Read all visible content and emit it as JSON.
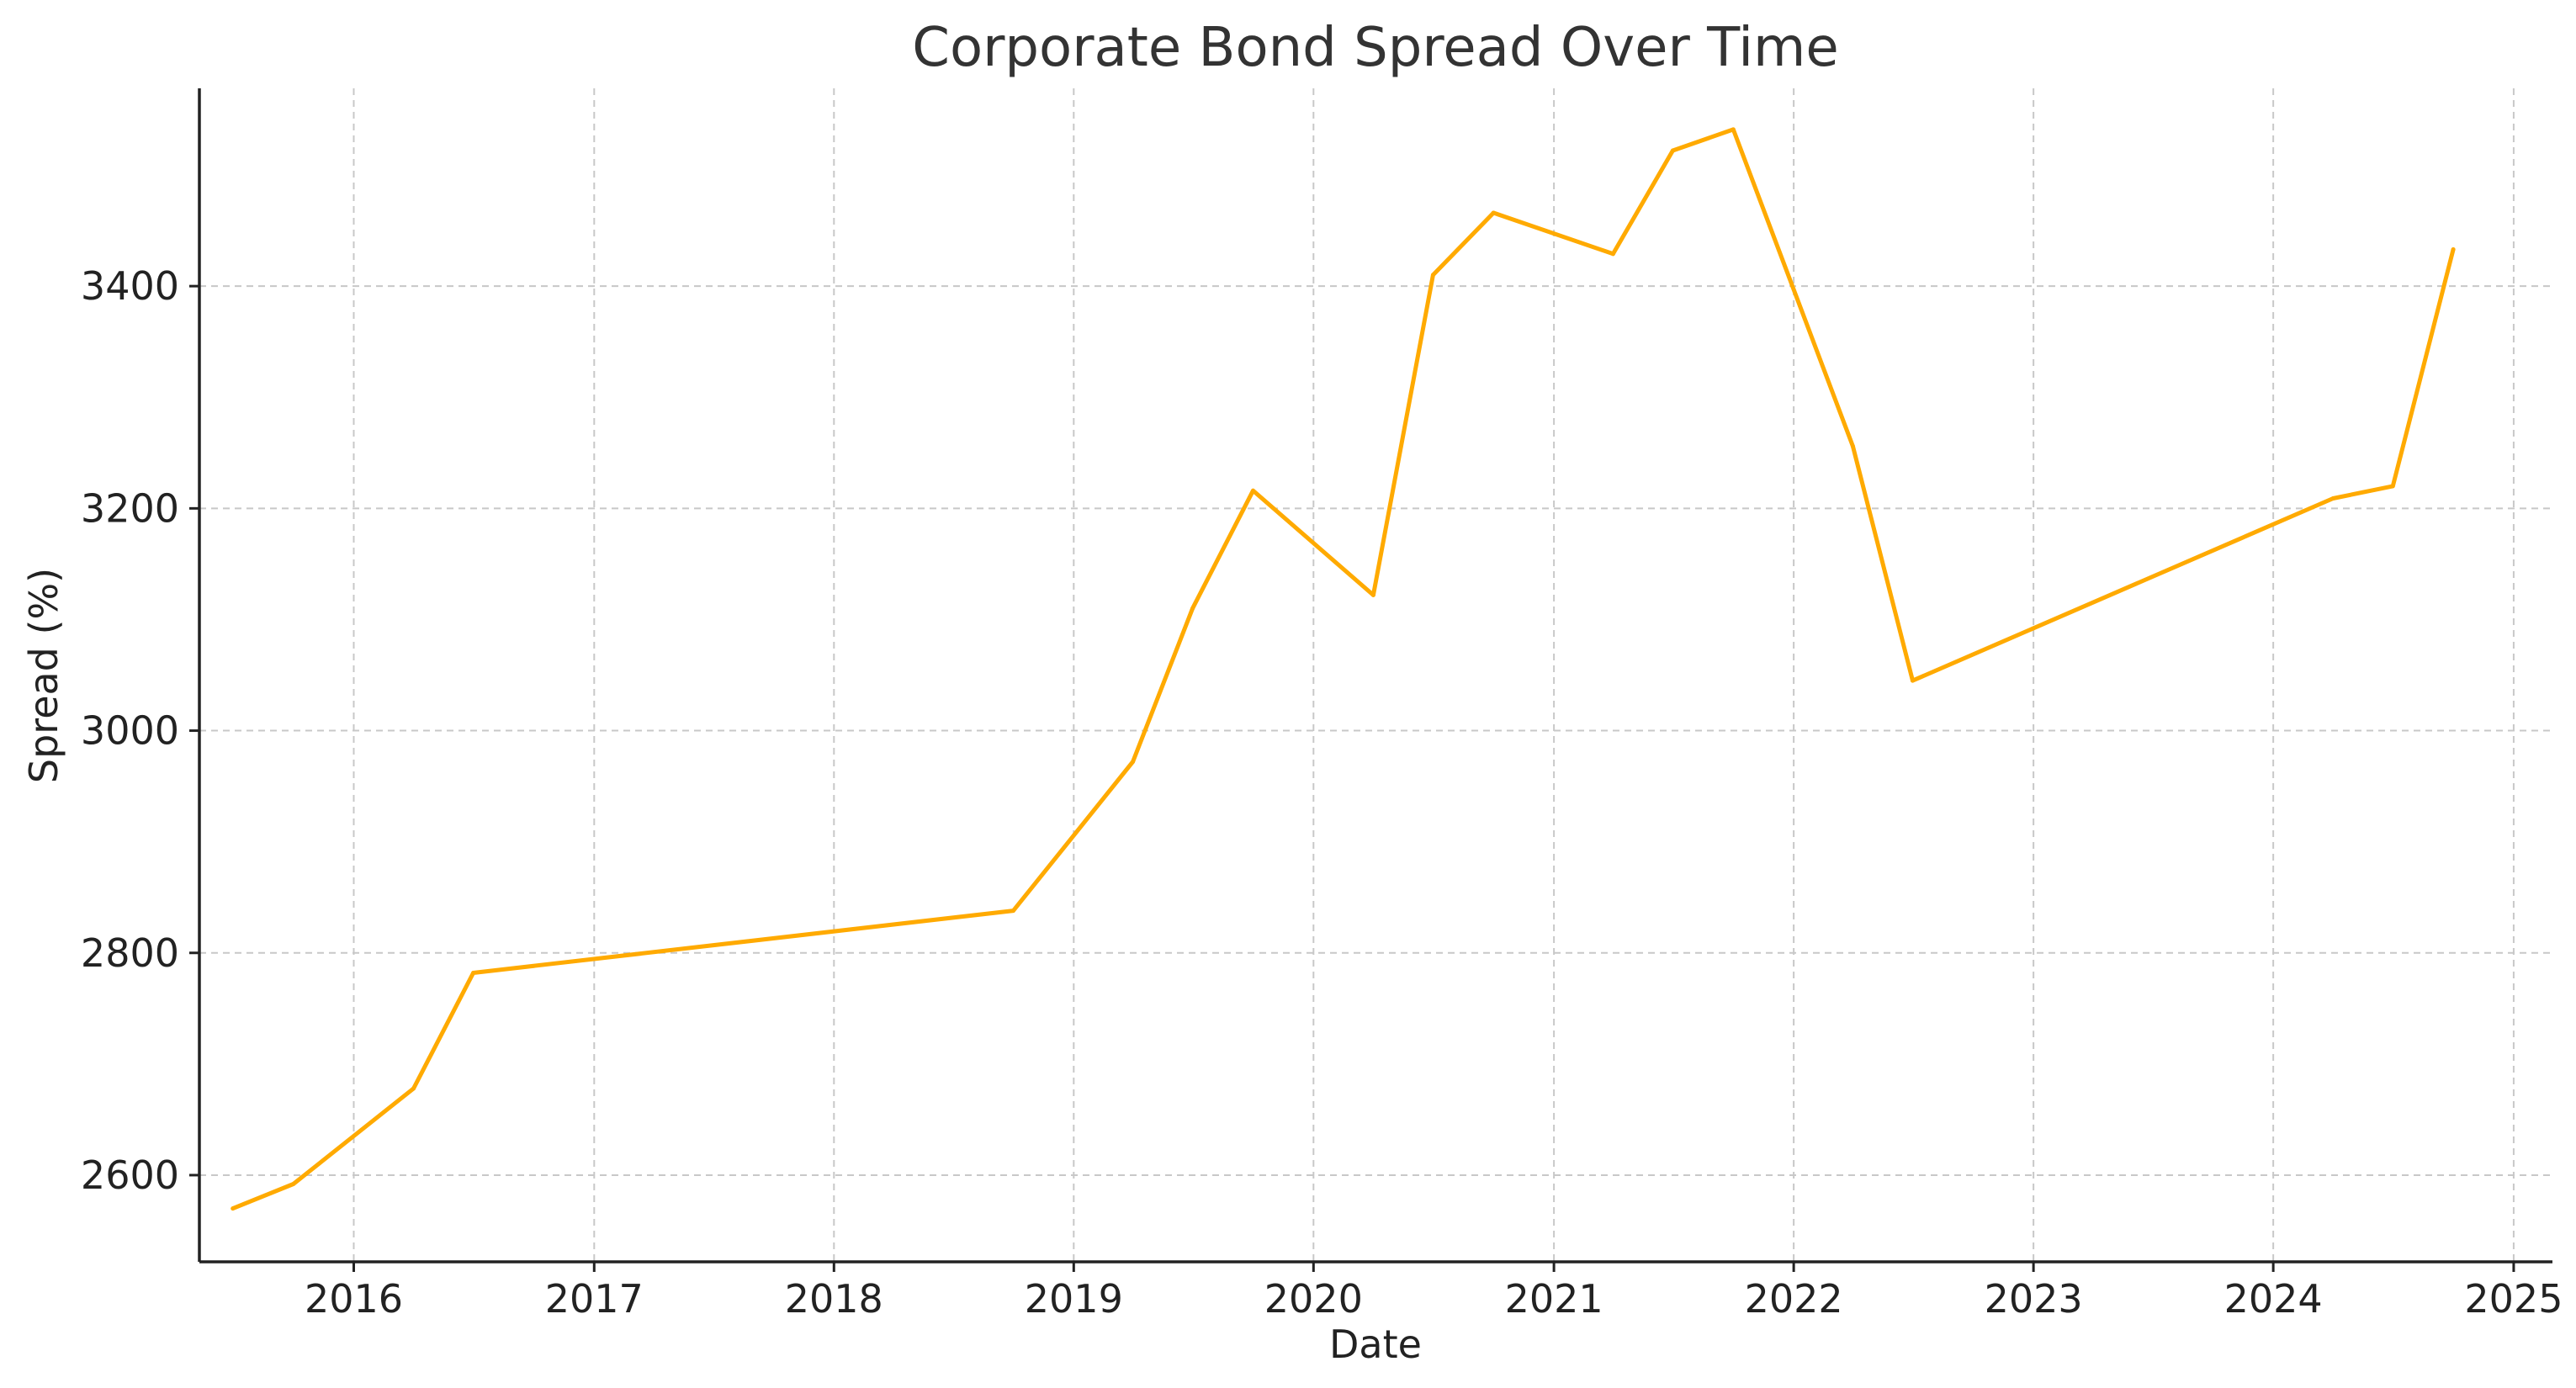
{
  "chart_data": {
    "type": "line",
    "title": "Corporate Bond Spread Over Time",
    "xlabel": "Date",
    "ylabel": "Spread (%)",
    "x_axis_type": "date",
    "x_ticks": [
      "2016",
      "2017",
      "2018",
      "2019",
      "2020",
      "2021",
      "2022",
      "2023",
      "2024",
      "2025"
    ],
    "y_ticks": [
      2600,
      2800,
      3000,
      3200,
      3400
    ],
    "xlim": [
      "2015-05-11",
      "2025-03-01"
    ],
    "ylim": [
      2522,
      3578
    ],
    "grid": true,
    "legend": "none",
    "series": [
      {
        "color": "#FFAA00",
        "points": [
          {
            "x": "2015-07-01",
            "y": 2570
          },
          {
            "x": "2015-10-01",
            "y": 2592
          },
          {
            "x": "2016-04-01",
            "y": 2678
          },
          {
            "x": "2016-07-01",
            "y": 2782
          },
          {
            "x": "2018-10-01",
            "y": 2838
          },
          {
            "x": "2019-04-01",
            "y": 2972
          },
          {
            "x": "2019-07-01",
            "y": 3110
          },
          {
            "x": "2019-10-01",
            "y": 3216
          },
          {
            "x": "2020-04-01",
            "y": 3122
          },
          {
            "x": "2020-07-01",
            "y": 3410
          },
          {
            "x": "2020-10-01",
            "y": 3466
          },
          {
            "x": "2021-04-01",
            "y": 3429
          },
          {
            "x": "2021-07-01",
            "y": 3522
          },
          {
            "x": "2021-10-01",
            "y": 3541
          },
          {
            "x": "2022-04-01",
            "y": 3256
          },
          {
            "x": "2022-07-01",
            "y": 3045
          },
          {
            "x": "2024-04-01",
            "y": 3209
          },
          {
            "x": "2024-07-01",
            "y": 3220
          },
          {
            "x": "2024-10-01",
            "y": 3433
          }
        ]
      }
    ]
  }
}
